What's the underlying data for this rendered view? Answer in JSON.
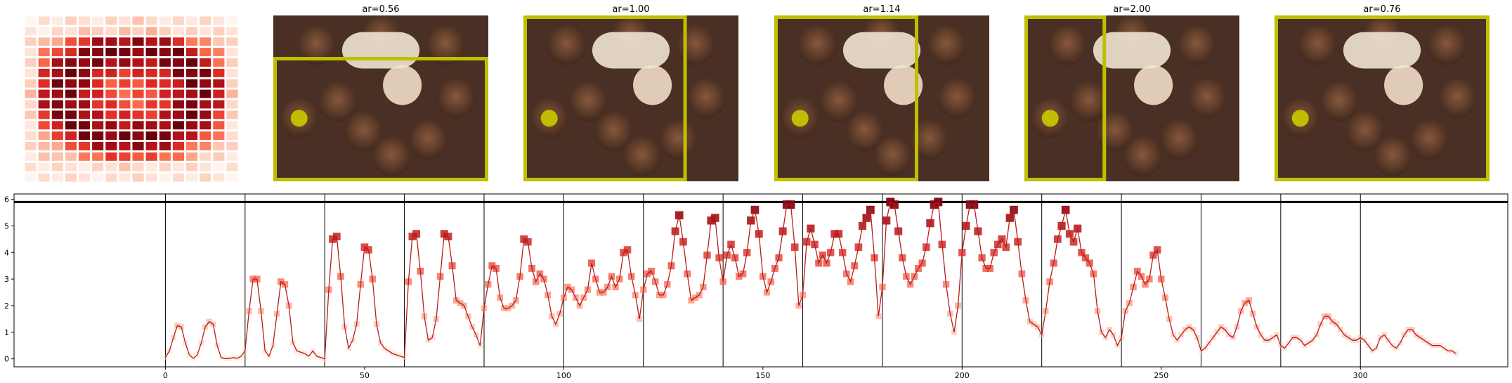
{
  "heatmap": {
    "grid_size": 16,
    "cmap": [
      "#fff5f0",
      "#fdd4c2",
      "#fca082",
      "#fb6b4b",
      "#e32f27",
      "#b11218",
      "#67000d"
    ]
  },
  "panels": [
    {
      "title": "ar=0.56",
      "box": {
        "x": 0.0,
        "y": 0.25,
        "w": 1.0,
        "h": 0.75
      }
    },
    {
      "title": "ar=1.00",
      "box": {
        "x": 0.0,
        "y": 0.0,
        "w": 0.76,
        "h": 1.0
      }
    },
    {
      "title": "ar=1.14",
      "box": {
        "x": 0.0,
        "y": 0.0,
        "w": 0.67,
        "h": 1.0
      }
    },
    {
      "title": "ar=2.00",
      "box": {
        "x": 0.0,
        "y": 0.0,
        "w": 0.38,
        "h": 1.0
      }
    },
    {
      "title": "ar=0.76",
      "box": {
        "x": 0.0,
        "y": 0.0,
        "w": 1.0,
        "h": 1.0
      }
    }
  ],
  "focus_point": {
    "u": 0.12,
    "v": 0.62
  },
  "colors": {
    "box": "#bfbf00",
    "dot": "#bfbf00",
    "line": "#b81c1c",
    "threshold": "#000000"
  },
  "chart_data": {
    "type": "line",
    "title": "",
    "xlabel": "",
    "ylabel": "",
    "xlim": [
      -38,
      337
    ],
    "ylim": [
      -0.3,
      6.2
    ],
    "xticks": [
      0,
      50,
      100,
      150,
      200,
      250,
      300
    ],
    "yticks": [
      0,
      1,
      2,
      3,
      4,
      5,
      6
    ],
    "threshold": 5.9,
    "vlines": [
      0,
      20,
      40,
      60,
      80,
      100,
      120,
      140,
      160,
      180,
      200,
      220,
      240,
      260,
      280,
      300
    ],
    "y": [
      0.05,
      0.3,
      0.8,
      1.25,
      1.2,
      0.6,
      0.15,
      0.02,
      0.15,
      0.6,
      1.2,
      1.4,
      1.3,
      0.5,
      0.05,
      0.01,
      0.01,
      0.05,
      0.02,
      0.1,
      0.3,
      1.8,
      3.0,
      3.0,
      1.8,
      0.3,
      0.1,
      0.5,
      1.7,
      2.9,
      2.8,
      2.0,
      0.6,
      0.3,
      0.25,
      0.2,
      0.1,
      0.3,
      0.1,
      0.05,
      0.0,
      2.6,
      4.5,
      4.6,
      3.1,
      1.2,
      0.4,
      0.7,
      1.3,
      2.8,
      4.2,
      4.1,
      3.0,
      1.3,
      0.6,
      0.4,
      0.3,
      0.2,
      0.15,
      0.1,
      0.05,
      2.9,
      4.6,
      4.7,
      3.3,
      1.6,
      0.7,
      0.8,
      1.5,
      3.1,
      4.7,
      4.6,
      3.5,
      2.2,
      2.1,
      2.0,
      1.6,
      1.2,
      0.9,
      0.5,
      1.9,
      2.8,
      3.5,
      3.4,
      2.3,
      1.9,
      1.9,
      2.0,
      2.2,
      3.1,
      4.5,
      4.4,
      3.4,
      2.9,
      3.2,
      3.0,
      2.4,
      1.6,
      1.3,
      1.7,
      2.3,
      2.7,
      2.6,
      2.3,
      2.0,
      2.3,
      2.6,
      3.6,
      3.0,
      2.5,
      2.5,
      2.7,
      3.1,
      2.7,
      3.0,
      4.0,
      4.1,
      3.1,
      2.4,
      1.5,
      2.6,
      3.2,
      3.3,
      2.9,
      2.4,
      2.4,
      2.8,
      3.5,
      4.8,
      5.4,
      4.4,
      3.2,
      2.2,
      2.3,
      2.4,
      2.7,
      3.9,
      5.2,
      5.3,
      3.8,
      2.9,
      3.9,
      4.3,
      3.8,
      3.1,
      3.2,
      4.0,
      5.2,
      5.6,
      4.7,
      3.1,
      2.5,
      2.9,
      3.4,
      3.8,
      4.8,
      5.8,
      5.8,
      4.2,
      2.0,
      2.4,
      4.4,
      4.9,
      4.3,
      3.6,
      3.9,
      3.6,
      4.0,
      4.7,
      4.7,
      4.0,
      3.2,
      2.9,
      3.5,
      4.2,
      5.0,
      5.3,
      5.6,
      3.8,
      1.6,
      2.7,
      5.2,
      5.9,
      5.8,
      4.8,
      3.8,
      3.1,
      2.8,
      3.1,
      3.4,
      3.6,
      4.2,
      5.1,
      5.8,
      5.9,
      4.3,
      2.8,
      1.7,
      1.0,
      2.0,
      4.0,
      5.0,
      5.8,
      5.8,
      4.8,
      3.8,
      3.4,
      3.4,
      4.0,
      4.3,
      4.5,
      4.2,
      5.3,
      5.6,
      4.4,
      3.2,
      2.2,
      1.4,
      1.3,
      1.2,
      0.9,
      1.8,
      2.9,
      3.6,
      4.5,
      5.0,
      5.6,
      4.7,
      4.4,
      4.9,
      4.0,
      3.8,
      3.6,
      3.2,
      1.8,
      1.0,
      0.8,
      1.1,
      0.9,
      0.5,
      0.8,
      1.8,
      2.1,
      2.7,
      3.3,
      3.1,
      2.8,
      3.0,
      3.9,
      4.1,
      3.0,
      2.3,
      1.5,
      0.9,
      0.7,
      0.9,
      1.1,
      1.2,
      1.1,
      0.8,
      0.3,
      0.4,
      0.6,
      0.8,
      1.0,
      1.2,
      1.1,
      0.9,
      0.8,
      1.2,
      1.8,
      2.1,
      2.2,
      1.7,
      1.2,
      0.9,
      0.7,
      0.7,
      0.8,
      0.9,
      0.5,
      0.4,
      0.6,
      0.8,
      0.8,
      0.7,
      0.5,
      0.6,
      0.7,
      0.9,
      1.3,
      1.6,
      1.6,
      1.4,
      1.3,
      1.1,
      0.9,
      0.8,
      0.7,
      0.7,
      0.8,
      0.7,
      0.5,
      0.3,
      0.4,
      0.8,
      0.9,
      0.7,
      0.5,
      0.4,
      0.6,
      0.9,
      1.1,
      1.1,
      0.9,
      0.8,
      0.7,
      0.6,
      0.5,
      0.5,
      0.5,
      0.4,
      0.3,
      0.3,
      0.2
    ]
  }
}
